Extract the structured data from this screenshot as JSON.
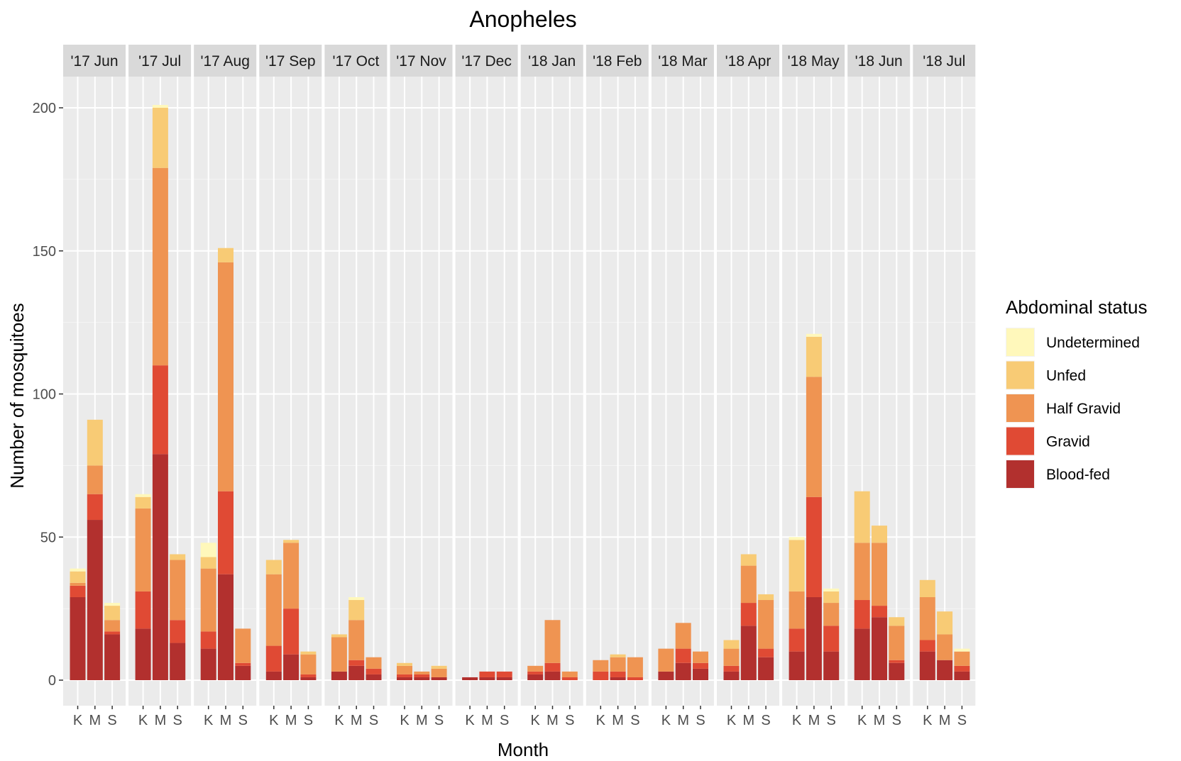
{
  "chart_data": {
    "type": "bar",
    "stacked": true,
    "title": "Anopheles",
    "xlabel": "Month",
    "ylabel": "Number of mosquitoes",
    "ylim": [
      0,
      210
    ],
    "yticks": [
      0,
      50,
      100,
      150,
      200
    ],
    "grid": true,
    "facets": [
      "'17 Jun",
      "'17 Jul",
      "'17 Aug",
      "'17 Sep",
      "'17 Oct",
      "'17 Nov",
      "'17 Dec",
      "'18 Jan",
      "'18 Feb",
      "'18 Mar",
      "'18 Apr",
      "'18 May",
      "'18 Jun",
      "'18 Jul"
    ],
    "categories": [
      "K",
      "M",
      "S"
    ],
    "legend": {
      "title": "Abdominal status",
      "position": "right",
      "entries": [
        "Undetermined",
        "Unfed",
        "Half Gravid",
        "Gravid",
        "Blood-fed"
      ]
    },
    "series": [
      {
        "name": "Blood-fed",
        "color": "#b2302e",
        "values": [
          [
            29,
            56,
            16
          ],
          [
            18,
            79,
            13
          ],
          [
            11,
            37,
            5
          ],
          [
            3,
            9,
            1
          ],
          [
            3,
            5,
            2
          ],
          [
            1,
            1,
            1
          ],
          [
            1,
            1,
            1
          ],
          [
            2,
            3,
            0
          ],
          [
            0,
            1,
            0
          ],
          [
            3,
            6,
            4
          ],
          [
            3,
            19,
            8
          ],
          [
            10,
            29,
            10
          ],
          [
            18,
            22,
            6
          ],
          [
            10,
            7,
            3
          ]
        ]
      },
      {
        "name": "Gravid",
        "color": "#e04a34",
        "values": [
          [
            4,
            9,
            1
          ],
          [
            13,
            31,
            8
          ],
          [
            6,
            29,
            1
          ],
          [
            9,
            16,
            1
          ],
          [
            0,
            2,
            2
          ],
          [
            1,
            1,
            0
          ],
          [
            0,
            2,
            2
          ],
          [
            1,
            3,
            1
          ],
          [
            3,
            2,
            1
          ],
          [
            0,
            5,
            2
          ],
          [
            2,
            8,
            3
          ],
          [
            8,
            35,
            9
          ],
          [
            10,
            4,
            1
          ],
          [
            4,
            0,
            2
          ]
        ]
      },
      {
        "name": "Half Gravid",
        "color": "#ef9452",
        "values": [
          [
            1,
            10,
            4
          ],
          [
            29,
            69,
            21
          ],
          [
            22,
            80,
            12
          ],
          [
            25,
            23,
            7
          ],
          [
            12,
            14,
            4
          ],
          [
            3,
            1,
            3
          ],
          [
            0,
            0,
            0
          ],
          [
            2,
            15,
            2
          ],
          [
            4,
            5,
            7
          ],
          [
            8,
            9,
            4
          ],
          [
            6,
            13,
            17
          ],
          [
            13,
            42,
            8
          ],
          [
            20,
            22,
            12
          ],
          [
            15,
            9,
            5
          ]
        ]
      },
      {
        "name": "Unfed",
        "color": "#f8cb75",
        "values": [
          [
            4,
            16,
            5
          ],
          [
            4,
            21,
            2
          ],
          [
            4,
            5,
            0
          ],
          [
            5,
            1,
            1
          ],
          [
            1,
            7,
            0
          ],
          [
            1,
            0,
            1
          ],
          [
            0,
            0,
            0
          ],
          [
            0,
            0,
            0
          ],
          [
            0,
            1,
            0
          ],
          [
            0,
            0,
            0
          ],
          [
            3,
            4,
            2
          ],
          [
            18,
            14,
            4
          ],
          [
            18,
            6,
            3
          ],
          [
            6,
            8,
            0
          ]
        ]
      },
      {
        "name": "Undetermined",
        "color": "#fff8bb",
        "values": [
          [
            1,
            0,
            1
          ],
          [
            1,
            1,
            0
          ],
          [
            5,
            0,
            0
          ],
          [
            0,
            0,
            0
          ],
          [
            0,
            1,
            0
          ],
          [
            0,
            0,
            0
          ],
          [
            0,
            0,
            0
          ],
          [
            0,
            0,
            0
          ],
          [
            0,
            0,
            0
          ],
          [
            0,
            0,
            0
          ],
          [
            0,
            0,
            0
          ],
          [
            1,
            1,
            1
          ],
          [
            0,
            0,
            0
          ],
          [
            0,
            0,
            1
          ]
        ]
      }
    ]
  }
}
